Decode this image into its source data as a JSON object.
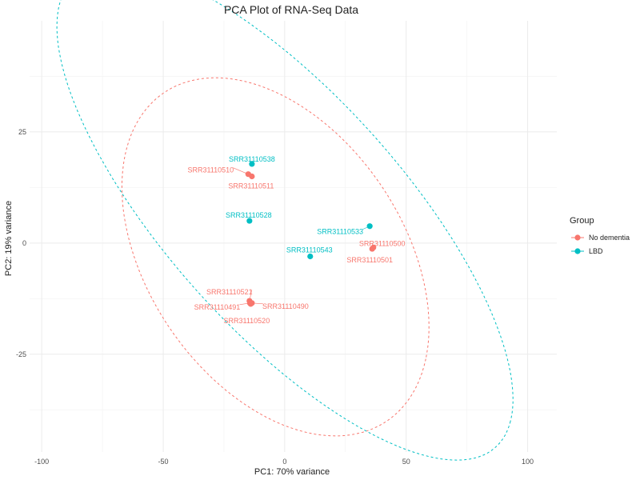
{
  "chart_data": {
    "type": "scatter",
    "title": "PCA Plot of RNA-Seq Data",
    "xlabel": "PC1: 70% variance",
    "ylabel": "PC2: 19% variance",
    "xlim": [
      -105,
      112
    ],
    "ylim": [
      -47,
      50
    ],
    "xticks": [
      -100,
      -50,
      0,
      50,
      100
    ],
    "yticks": [
      -25,
      0,
      25
    ],
    "xtick_labels": [
      "-100",
      "-50",
      "0",
      "50",
      "100"
    ],
    "ytick_labels": [
      "-25",
      "0",
      "25"
    ],
    "grid": true,
    "legend": {
      "title": "Group",
      "position": "right",
      "entries": [
        {
          "name": "No dementia",
          "color": "#F8766D"
        },
        {
          "name": "LBD",
          "color": "#00BFC4"
        }
      ]
    },
    "series": [
      {
        "name": "No dementia",
        "color": "#F8766D",
        "points": [
          {
            "label": "SRR31110510",
            "x": -15,
            "y": 15.5
          },
          {
            "label": "SRR31110511",
            "x": -13.5,
            "y": 15
          },
          {
            "label": "SRR31110500",
            "x": 36.5,
            "y": -1
          },
          {
            "label": "SRR31110501",
            "x": 36,
            "y": -1.3
          },
          {
            "label": "SRR31110521",
            "x": -14.5,
            "y": -13
          },
          {
            "label": "SRR31110491",
            "x": -14.3,
            "y": -13.5
          },
          {
            "label": "SRR31110490",
            "x": -13.5,
            "y": -13.5
          },
          {
            "label": "SRR31110520",
            "x": -14,
            "y": -13.7
          }
        ],
        "ellipse": {
          "center": [
            -3.8,
            -3.1
          ],
          "semi_axes": [
            66,
            35.5
          ],
          "rotation_deg": -20
        }
      },
      {
        "name": "LBD",
        "color": "#00BFC4",
        "points": [
          {
            "label": "SRR31110538",
            "x": -13.5,
            "y": 17.8
          },
          {
            "label": "SRR31110528",
            "x": -14.5,
            "y": 5
          },
          {
            "label": "SRR31110533",
            "x": 35,
            "y": 3.8
          },
          {
            "label": "SRR31110543",
            "x": 10.5,
            "y": -3
          }
        ],
        "ellipse": {
          "center": [
            0.1,
            6.8
          ],
          "semi_axes": [
            104,
            33
          ],
          "rotation_deg": -27
        }
      }
    ]
  }
}
